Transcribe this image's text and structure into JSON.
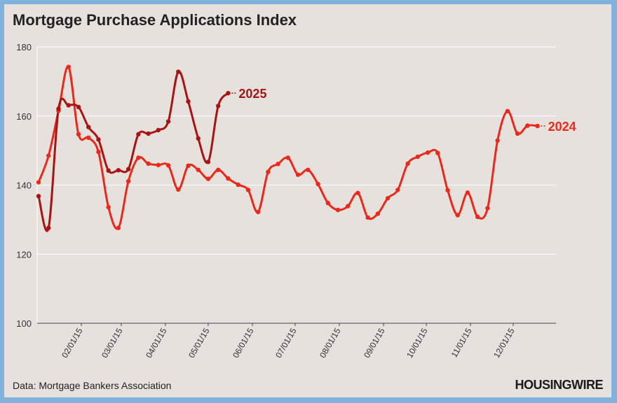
{
  "title": "Mortgage Purchase Applications Index",
  "source": "Data: Mortgage Bankers Association",
  "brand": "HOUSINGWIRE",
  "chart_data": {
    "type": "line",
    "title": "Mortgage Purchase Applications Index",
    "xlabel": "",
    "ylabel": "",
    "ylim": [
      100,
      180
    ],
    "yticks": [
      100,
      120,
      140,
      160,
      180
    ],
    "xlim": [
      "2015-01-01",
      "2015-12-31"
    ],
    "xticks": [
      "02/01/15",
      "03/01/15",
      "04/01/15",
      "05/01/15",
      "06/01/15",
      "07/01/15",
      "08/01/15",
      "09/01/15",
      "10/01/15",
      "11/01/15",
      "12/01/15"
    ],
    "grid": true,
    "legend": "labels at line ends",
    "series": [
      {
        "name": "2024",
        "color": "#e8291c",
        "points": [
          [
            "01/02",
            140.8
          ],
          [
            "01/09",
            148.5
          ],
          [
            "01/16",
            161.5
          ],
          [
            "01/23",
            174.2
          ],
          [
            "01/30",
            154.7
          ],
          [
            "02/06",
            153.7
          ],
          [
            "02/13",
            149.6
          ],
          [
            "02/20",
            133.6
          ],
          [
            "02/27",
            127.6
          ],
          [
            "03/06",
            141.1
          ],
          [
            "03/13",
            147.9
          ],
          [
            "03/20",
            146.2
          ],
          [
            "03/27",
            145.8
          ],
          [
            "04/03",
            145.7
          ],
          [
            "04/10",
            138.7
          ],
          [
            "04/17",
            145.6
          ],
          [
            "04/24",
            144.4
          ],
          [
            "05/01",
            141.8
          ],
          [
            "05/08",
            144.4
          ],
          [
            "05/15",
            141.9
          ],
          [
            "05/22",
            140.1
          ],
          [
            "05/29",
            138.6
          ],
          [
            "06/05",
            132.2
          ],
          [
            "06/12",
            143.8
          ],
          [
            "06/19",
            146.1
          ],
          [
            "06/26",
            147.9
          ],
          [
            "07/03",
            143.0
          ],
          [
            "07/10",
            144.4
          ],
          [
            "07/17",
            140.3
          ],
          [
            "07/24",
            134.8
          ],
          [
            "07/31",
            132.8
          ],
          [
            "08/07",
            133.9
          ],
          [
            "08/14",
            137.7
          ],
          [
            "08/21",
            130.6
          ],
          [
            "08/28",
            131.7
          ],
          [
            "09/04",
            136.2
          ],
          [
            "09/11",
            138.6
          ],
          [
            "09/18",
            146.2
          ],
          [
            "09/25",
            148.2
          ],
          [
            "10/02",
            149.4
          ],
          [
            "10/09",
            149.3
          ],
          [
            "10/16",
            138.5
          ],
          [
            "10/23",
            131.3
          ],
          [
            "10/30",
            137.8
          ],
          [
            "11/06",
            130.8
          ],
          [
            "11/13",
            133.3
          ],
          [
            "11/20",
            152.9
          ],
          [
            "11/27",
            161.4
          ],
          [
            "12/04",
            154.9
          ],
          [
            "12/11",
            157.2
          ],
          [
            "12/18",
            157.1
          ]
        ]
      },
      {
        "name": "2025",
        "color": "#a81414",
        "points": [
          [
            "01/02",
            136.8
          ],
          [
            "01/09",
            127.6
          ],
          [
            "01/16",
            162.1
          ],
          [
            "01/23",
            163.1
          ],
          [
            "01/30",
            162.6
          ],
          [
            "02/06",
            156.8
          ],
          [
            "02/13",
            153.2
          ],
          [
            "02/20",
            144.2
          ],
          [
            "02/27",
            144.3
          ],
          [
            "03/06",
            144.6
          ],
          [
            "03/13",
            154.7
          ],
          [
            "03/20",
            154.9
          ],
          [
            "03/27",
            155.9
          ],
          [
            "04/03",
            158.4
          ],
          [
            "04/10",
            172.8
          ],
          [
            "04/17",
            164.2
          ],
          [
            "04/24",
            153.5
          ],
          [
            "05/01",
            146.7
          ],
          [
            "05/08",
            162.9
          ],
          [
            "05/15",
            166.6
          ]
        ]
      }
    ]
  }
}
